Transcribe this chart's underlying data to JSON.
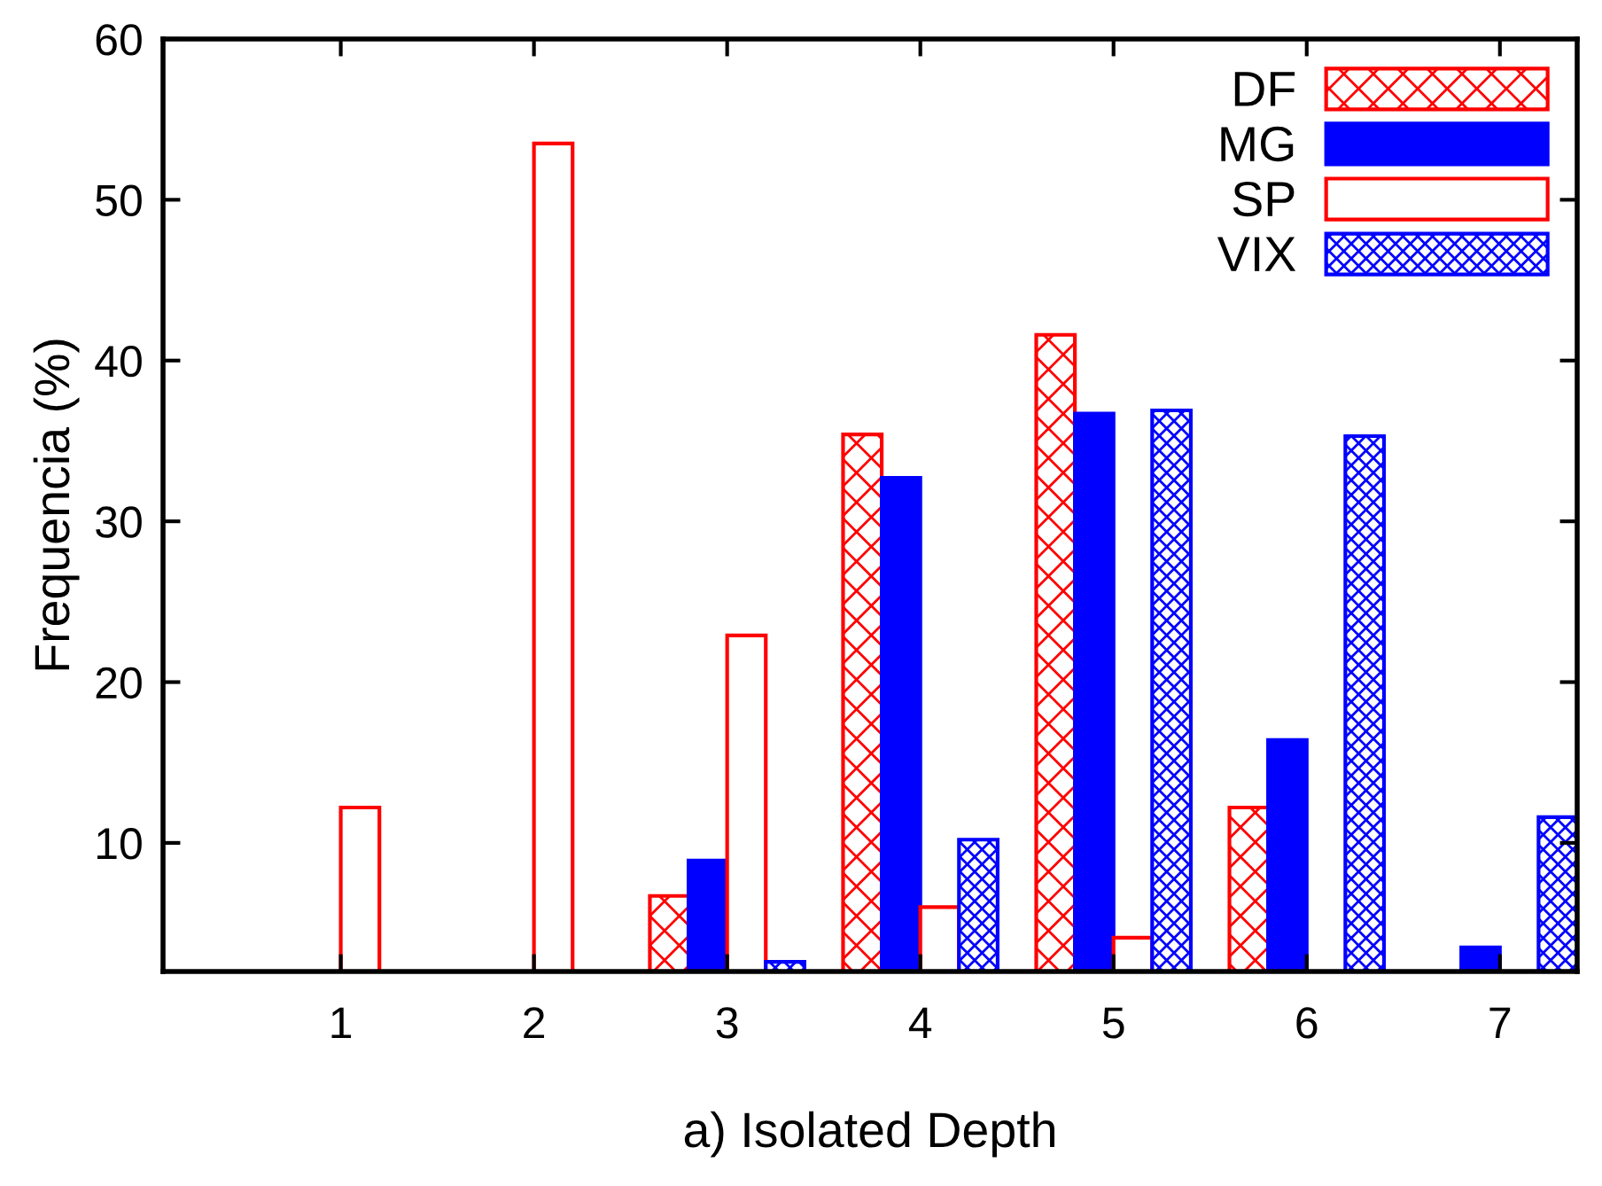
{
  "chart_data": {
    "type": "bar",
    "xlabel": "a) Isolated Depth",
    "ylabel": "Frequencia (%)",
    "categories": [
      "1",
      "2",
      "3",
      "4",
      "5",
      "6",
      "7"
    ],
    "series": [
      {
        "name": "DF",
        "color": "#ff0000",
        "values": [
          null,
          null,
          6.7,
          35.4,
          41.6,
          12.2,
          null
        ]
      },
      {
        "name": "MG",
        "color": "#0000ff",
        "values": [
          null,
          null,
          8.9,
          32.7,
          36.7,
          16.4,
          3.5
        ]
      },
      {
        "name": "SP",
        "color": "#ff0000",
        "values": [
          12.2,
          53.5,
          22.9,
          6.0,
          4.1,
          null,
          null
        ]
      },
      {
        "name": "VIX",
        "color": "#0000ff",
        "values": [
          null,
          null,
          2.6,
          10.2,
          36.9,
          35.3,
          11.6
        ]
      }
    ],
    "ylim": [
      2,
      60
    ],
    "yticks": [
      10,
      20,
      30,
      40,
      50,
      60
    ],
    "grid": false,
    "legend": "top right"
  }
}
